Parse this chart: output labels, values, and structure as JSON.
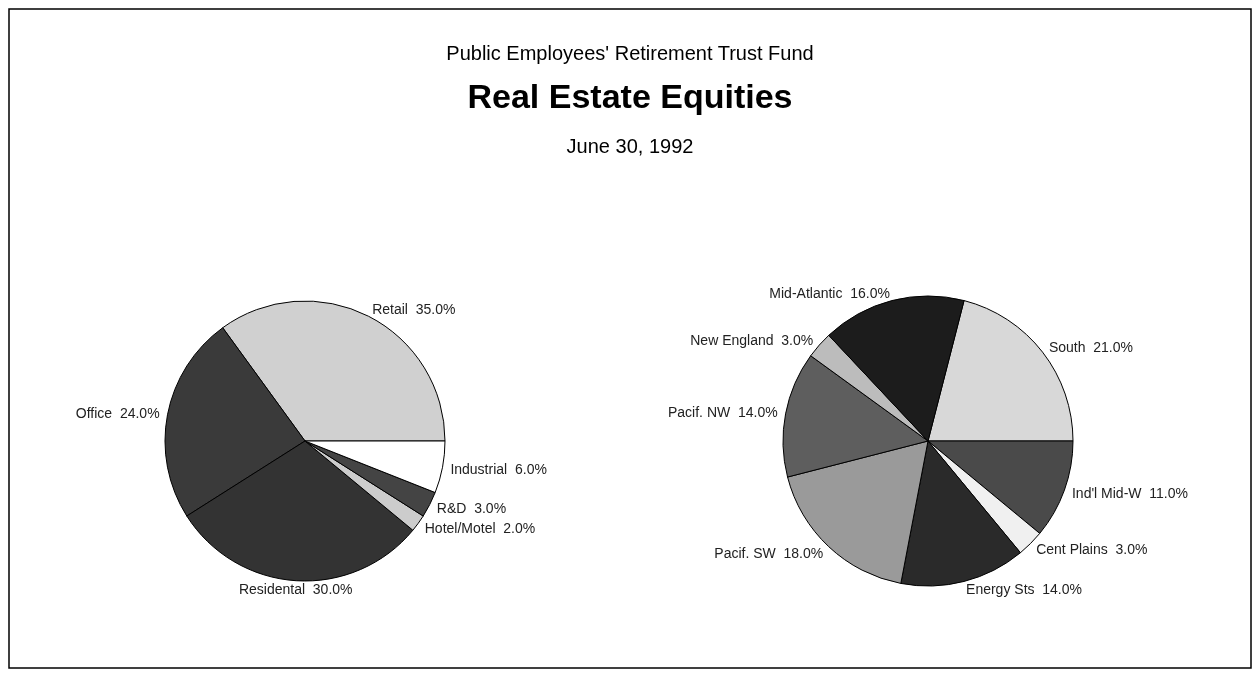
{
  "chart_data": [
    {
      "type": "pie",
      "title": "Real Estate Equities",
      "subtitle": "June 30, 1992",
      "annotations": [
        "Public Employees' Retirement Trust Fund"
      ],
      "categories": [
        "Retail",
        "Office",
        "Residental",
        "Hotel/Motel",
        "R&D",
        "Industrial"
      ],
      "values": [
        35,
        24,
        30,
        2,
        3,
        6
      ],
      "value_labels": [
        "35.0%",
        "24.0%",
        "30.0%",
        "2.0%",
        "3.0%",
        "6.0%"
      ],
      "colors": [
        "#d0d0d0",
        "#3a3a3a",
        "#333333",
        "#cccccc",
        "#444444",
        "#ffffff"
      ]
    },
    {
      "type": "pie",
      "categories": [
        "South",
        "Ind'l Mid-W",
        "Cent Plains",
        "Energy Sts",
        "Pacif. SW",
        "Pacif. NW",
        "New England",
        "Mid-Atlantic"
      ],
      "values": [
        21,
        11,
        3,
        14,
        18,
        14,
        3,
        16
      ],
      "value_labels": [
        "21.0%",
        "11.0%",
        "3.0%",
        "14.0%",
        "18.0%",
        "14.0%",
        "3.0%",
        "16.0%"
      ],
      "colors": [
        "#d8d8d8",
        "#4a4a4a",
        "#f0f0f0",
        "#2a2a2a",
        "#9a9a9a",
        "#5e5e5e",
        "#bcbcbc",
        "#1c1c1c"
      ]
    }
  ]
}
